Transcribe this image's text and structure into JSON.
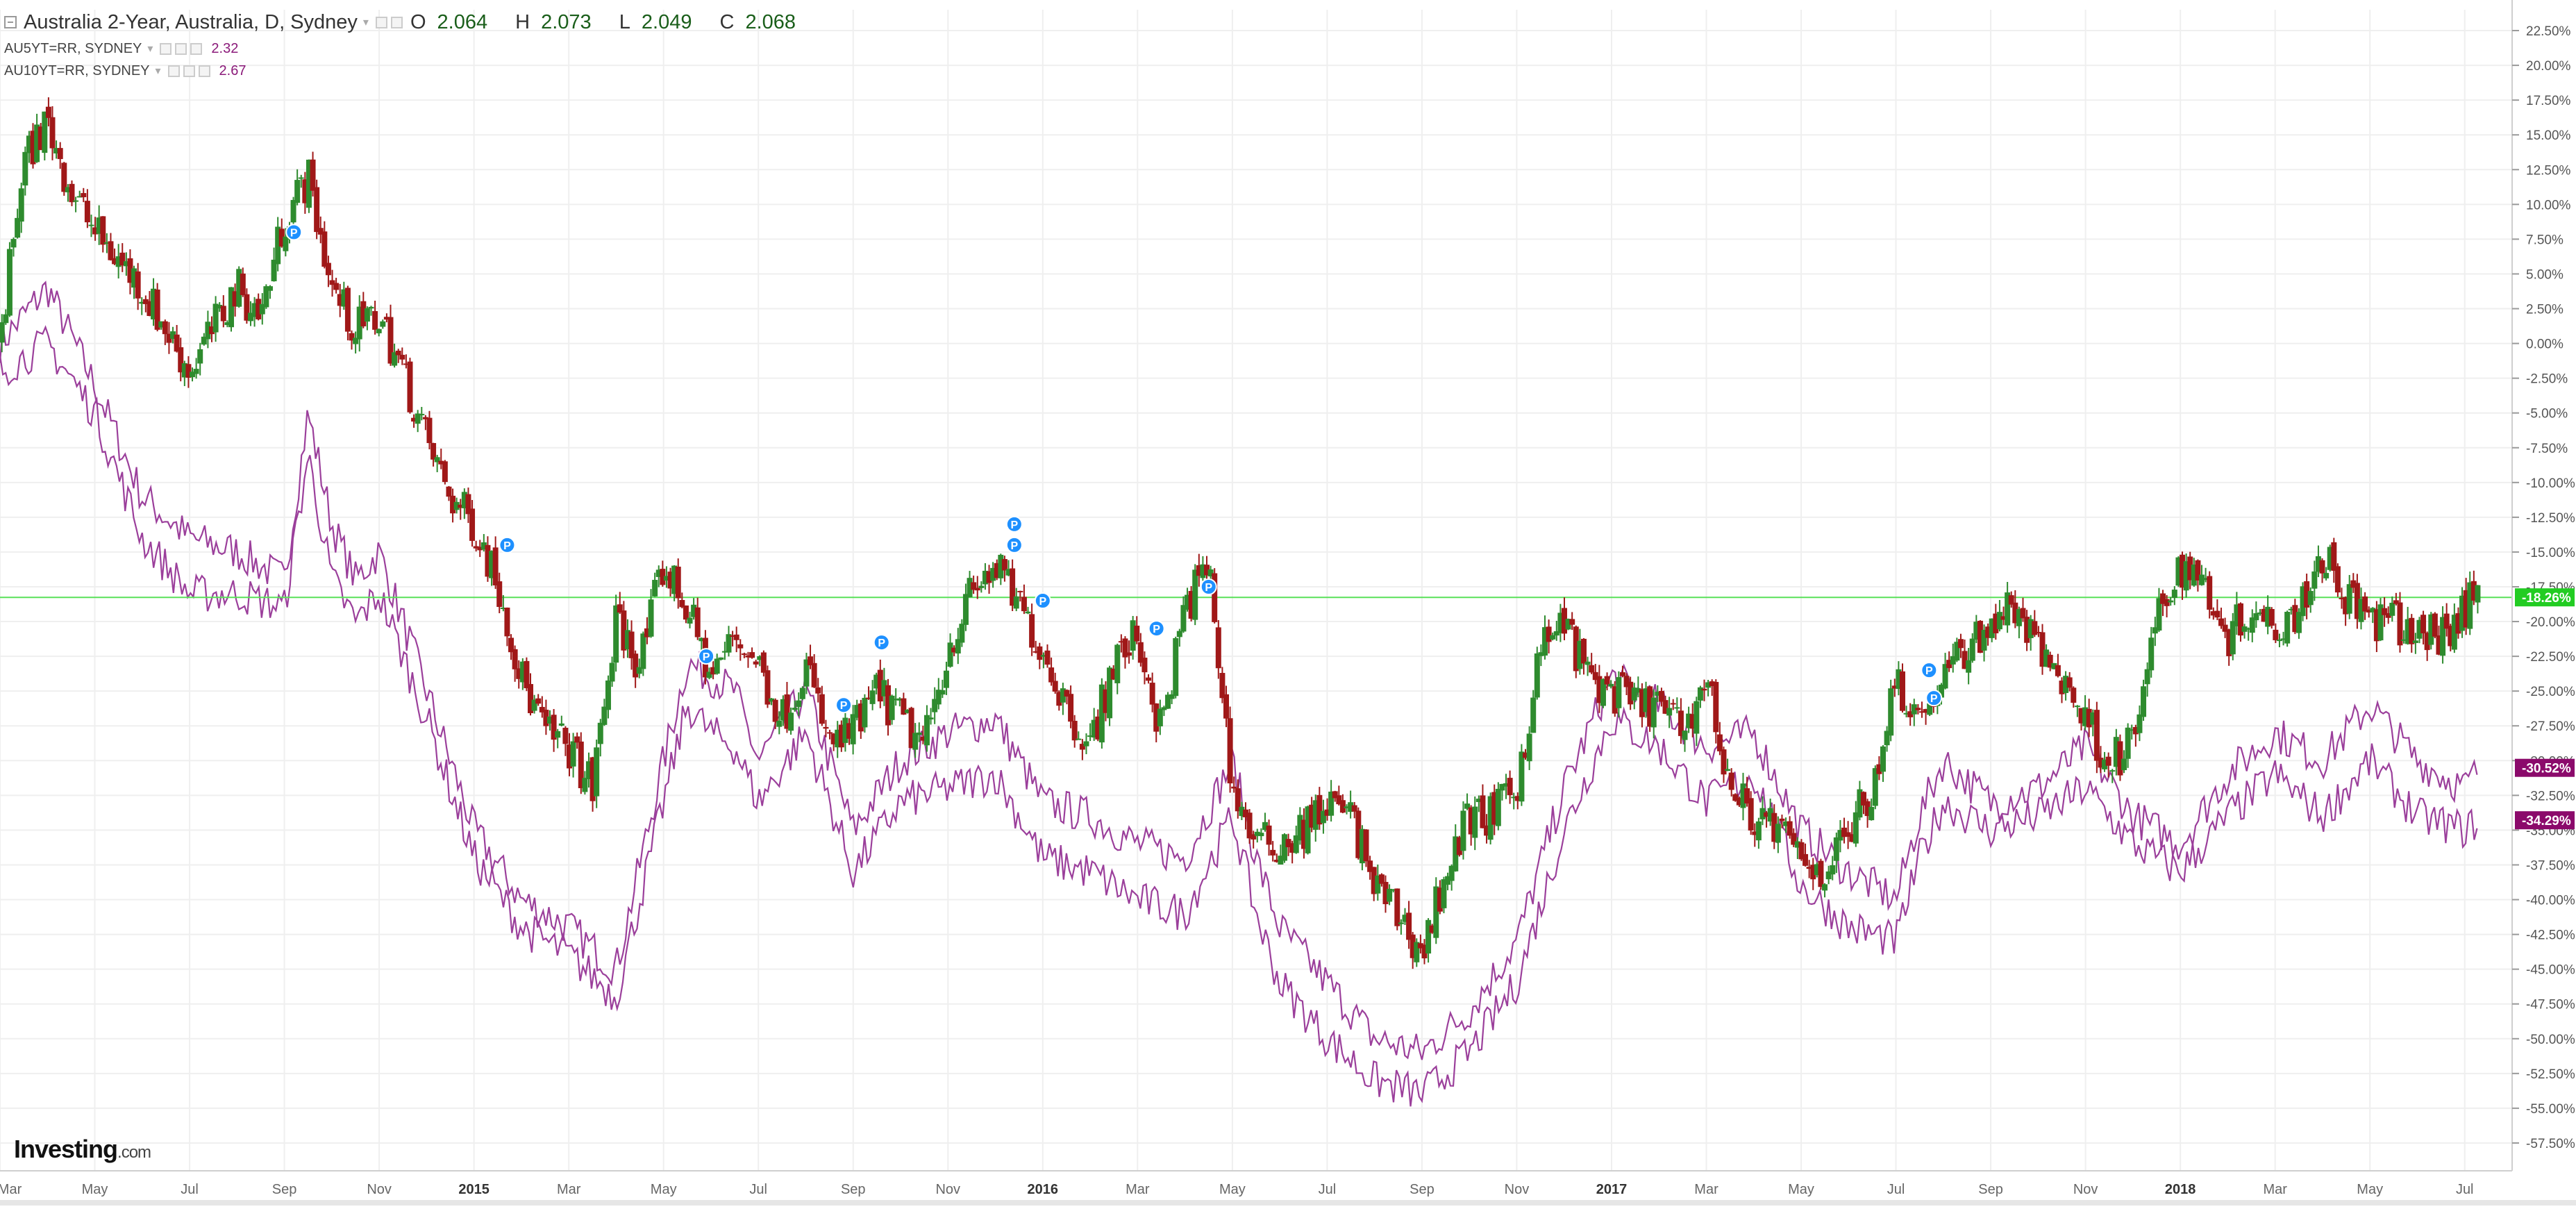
{
  "header": {
    "title": "Australia 2-Year, Australia, D, Sydney",
    "ohlc": [
      {
        "key": "O",
        "value": "2.064"
      },
      {
        "key": "H",
        "value": "2.073"
      },
      {
        "key": "L",
        "value": "2.049"
      },
      {
        "key": "C",
        "value": "2.068"
      }
    ]
  },
  "compare": [
    {
      "name": "AU5YT=RR, SYDNEY",
      "value": "2.32"
    },
    {
      "name": "AU10YT=RR, SYDNEY",
      "value": "2.67"
    }
  ],
  "brand": {
    "name": "Investing",
    "suffix": ".com"
  },
  "colors": {
    "up": "#2e8b2e",
    "down": "#a01818",
    "compare": "#9b3f9b",
    "price_line": "#58e058",
    "current_label": "#22cc22",
    "compare_label": "#8b0a6b",
    "marker": "#1e90ff"
  },
  "chart_data": {
    "type": "line",
    "yunit": "%",
    "ylim": [
      -59.5,
      24
    ],
    "y_ticks": [
      "22.50%",
      "20.00%",
      "17.50%",
      "15.00%",
      "12.50%",
      "10.00%",
      "7.50%",
      "5.00%",
      "2.50%",
      "0.00%",
      "-2.50%",
      "-5.00%",
      "-7.50%",
      "-10.00%",
      "-12.50%",
      "-15.00%",
      "-17.50%",
      "-20.00%",
      "-22.50%",
      "-25.00%",
      "-27.50%",
      "-30.00%",
      "-32.50%",
      "-35.00%",
      "-37.50%",
      "-40.00%",
      "-42.50%",
      "-45.00%",
      "-47.50%",
      "-50.00%",
      "-52.50%",
      "-55.00%",
      "-57.50%"
    ],
    "x_ticks": [
      {
        "label": "Mar",
        "t": 0.0
      },
      {
        "label": "May",
        "t": 2.0
      },
      {
        "label": "Jul",
        "t": 4.0
      },
      {
        "label": "Sep",
        "t": 6.0
      },
      {
        "label": "Nov",
        "t": 8.0
      },
      {
        "label": "2015",
        "t": 10.0
      },
      {
        "label": "Mar",
        "t": 12.0
      },
      {
        "label": "May",
        "t": 14.0
      },
      {
        "label": "Jul",
        "t": 16.0
      },
      {
        "label": "Sep",
        "t": 18.0
      },
      {
        "label": "Nov",
        "t": 20.0
      },
      {
        "label": "2016",
        "t": 22.0
      },
      {
        "label": "Mar",
        "t": 24.0
      },
      {
        "label": "May",
        "t": 26.0
      },
      {
        "label": "Jul",
        "t": 28.0
      },
      {
        "label": "Sep",
        "t": 30.0
      },
      {
        "label": "Nov",
        "t": 32.0
      },
      {
        "label": "2017",
        "t": 34.0
      },
      {
        "label": "Mar",
        "t": 36.0
      },
      {
        "label": "May",
        "t": 38.0
      },
      {
        "label": "Jul",
        "t": 40.0
      },
      {
        "label": "Sep",
        "t": 42.0
      },
      {
        "label": "Nov",
        "t": 44.0
      },
      {
        "label": "2018",
        "t": 46.0
      },
      {
        "label": "Mar",
        "t": 48.0
      },
      {
        "label": "May",
        "t": 50.0
      },
      {
        "label": "Jul",
        "t": 52.0
      }
    ],
    "bold_x_ticks": [
      "2015",
      "2016",
      "2017",
      "2018"
    ],
    "price_line": -18.26,
    "current_labels": [
      {
        "text": "-18.26%",
        "value": -18.26,
        "kind": "main"
      },
      {
        "text": "-30.52%",
        "value": -30.52,
        "kind": "compare"
      },
      {
        "text": "-34.29%",
        "value": -34.29,
        "kind": "compare"
      }
    ],
    "series": [
      {
        "name": "Australia 2-Year",
        "style": "candles",
        "t": [
          0,
          0.5,
          1,
          1.5,
          2,
          2.5,
          3,
          3.5,
          4,
          4.5,
          5,
          5.5,
          6,
          6.5,
          7,
          7.5,
          8,
          8.5,
          9,
          9.5,
          10,
          10.5,
          11,
          11.5,
          12,
          12.5,
          13,
          13.5,
          14,
          14.5,
          15,
          15.5,
          16,
          16.5,
          17,
          17.5,
          18,
          18.5,
          19,
          19.5,
          20,
          20.5,
          21,
          21.5,
          22,
          22.5,
          23,
          23.5,
          24,
          24.5,
          25,
          25.5,
          26,
          26.5,
          27,
          27.5,
          28,
          28.5,
          29,
          29.5,
          30,
          30.5,
          31,
          31.5,
          32,
          32.5,
          33,
          33.5,
          34,
          34.5,
          35,
          35.5,
          36,
          36.5,
          37,
          37.5,
          38,
          38.5,
          39,
          39.5,
          40,
          40.5,
          41,
          41.5,
          42,
          42.5,
          43,
          43.5,
          44,
          44.5,
          45,
          45.5,
          46,
          46.5,
          47,
          47.5,
          48,
          48.5,
          49,
          49.5,
          50,
          50.5,
          51,
          51.5,
          52,
          52.3
        ],
        "values": [
          0,
          13,
          16,
          11,
          8,
          6,
          4,
          1,
          -2,
          1,
          4,
          2,
          9,
          12,
          4,
          1,
          2,
          -2,
          -7,
          -11,
          -13,
          -17,
          -24,
          -28,
          -29,
          -32,
          -20,
          -23,
          -16,
          -19,
          -24,
          -21,
          -23,
          -27,
          -23,
          -29,
          -28,
          -25,
          -27,
          -29,
          -22,
          -18,
          -16,
          -19,
          -22,
          -26,
          -29,
          -23,
          -21,
          -28,
          -19,
          -16,
          -32,
          -36,
          -36,
          -35,
          -33,
          -34,
          -39,
          -41,
          -44,
          -38,
          -34,
          -34,
          -32,
          -22,
          -20,
          -24,
          -25,
          -26,
          -26,
          -28,
          -24,
          -32,
          -34,
          -35,
          -37,
          -38,
          -35,
          -32,
          -24,
          -27,
          -24,
          -22,
          -20,
          -19,
          -22,
          -24,
          -27,
          -30,
          -29,
          -20,
          -16,
          -17,
          -21,
          -19,
          -20,
          -19,
          -15,
          -18,
          -20,
          -20,
          -21,
          -21,
          -19,
          -18
        ]
      },
      {
        "name": "AU5YT=RR, SYDNEY",
        "style": "line",
        "t": [
          0,
          1,
          2,
          3,
          4,
          5,
          6,
          6.5,
          7,
          7.5,
          8,
          9,
          10,
          11,
          12,
          13,
          14,
          14.5,
          15,
          15.5,
          16,
          17,
          18,
          19,
          20,
          21,
          22,
          23,
          24,
          25,
          26,
          26.5,
          27,
          28,
          29,
          30,
          31,
          32,
          33,
          34,
          35,
          36,
          37,
          38,
          39,
          40,
          40.5,
          41,
          42,
          43,
          44,
          45,
          46,
          47,
          48,
          49,
          50,
          51,
          52,
          52.3
        ],
        "values": [
          0,
          4,
          -3,
          -11,
          -14,
          -15,
          -17,
          -5,
          -13,
          -17,
          -15,
          -25,
          -35,
          -40,
          -42,
          -45,
          -30,
          -23,
          -24,
          -25,
          -30,
          -25,
          -35,
          -30,
          -28,
          -27,
          -33,
          -34,
          -36,
          -37,
          -30,
          -37,
          -42,
          -46,
          -50,
          -51,
          -48,
          -43,
          -32,
          -24,
          -26,
          -29,
          -28,
          -35,
          -38,
          -40,
          -34,
          -30,
          -33,
          -32,
          -29,
          -34,
          -36,
          -31,
          -28,
          -30,
          -26,
          -30,
          -32,
          -30.5
        ]
      },
      {
        "name": "AU10YT=RR, SYDNEY",
        "style": "line",
        "t": [
          0,
          1,
          2,
          3,
          4,
          5,
          6,
          6.5,
          7,
          7.5,
          8,
          9,
          10,
          11,
          12,
          13,
          14,
          14.5,
          15,
          15.5,
          16,
          17,
          18,
          19,
          20,
          21,
          22,
          23,
          24,
          25,
          26,
          26.5,
          27,
          28,
          29,
          30,
          31,
          32,
          33,
          34,
          35,
          36,
          37,
          38,
          39,
          40,
          40.5,
          41,
          42,
          43,
          44,
          45,
          46,
          47,
          48,
          49,
          50,
          51,
          52,
          52.3
        ],
        "values": [
          -2,
          0,
          -5,
          -14,
          -18,
          -18,
          -19,
          -8,
          -17,
          -20,
          -18,
          -27,
          -37,
          -42,
          -44,
          -47,
          -33,
          -26,
          -28,
          -29,
          -33,
          -28,
          -38,
          -33,
          -32,
          -31,
          -37,
          -38,
          -40,
          -41,
          -34,
          -41,
          -46,
          -50,
          -53,
          -54,
          -51,
          -46,
          -35,
          -27,
          -29,
          -33,
          -31,
          -39,
          -42,
          -43,
          -37,
          -33,
          -35,
          -34,
          -32,
          -36,
          -38,
          -34,
          -31,
          -34,
          -30,
          -34,
          -35,
          -34.3
        ]
      }
    ],
    "markers": [
      {
        "t": 6.2,
        "value": 8
      },
      {
        "t": 10.7,
        "value": -14.5
      },
      {
        "t": 14.9,
        "value": -22.5
      },
      {
        "t": 17.8,
        "value": -26
      },
      {
        "t": 18.6,
        "value": -21.5
      },
      {
        "t": 21.4,
        "value": -13
      },
      {
        "t": 21.4,
        "value": -14.5
      },
      {
        "t": 22.0,
        "value": -18.5
      },
      {
        "t": 24.4,
        "value": -20.5
      },
      {
        "t": 25.5,
        "value": -17.5
      },
      {
        "t": 40.7,
        "value": -23.5
      },
      {
        "t": 40.8,
        "value": -25.5
      }
    ]
  }
}
